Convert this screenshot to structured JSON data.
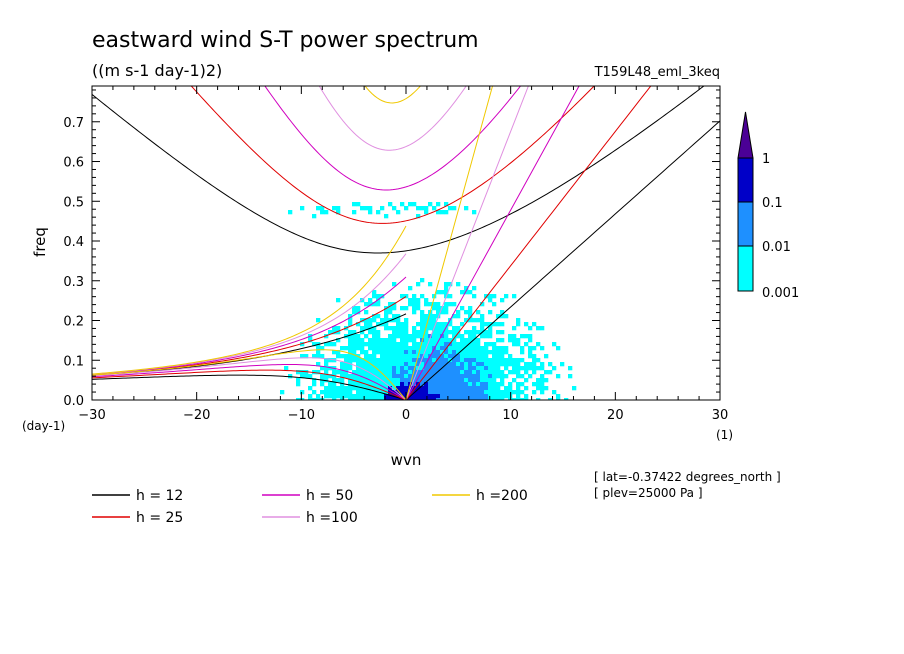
{
  "chart_data": {
    "type": "heatmap",
    "title": "eastward wind S-T power spectrum",
    "units": "((m s-1 day-1)2)",
    "run_label": "T159L48_eml_3keq",
    "xlabel": "wvn",
    "ylabel": "freq",
    "x_unit": "(1)",
    "y_unit": "(day-1)",
    "xlim": [
      -30,
      30
    ],
    "ylim": [
      0,
      0.79
    ],
    "x_ticks": [
      -30,
      -20,
      -10,
      0,
      10,
      20,
      30
    ],
    "y_ticks": [
      0.0,
      0.1,
      0.2,
      0.3,
      0.4,
      0.5,
      0.6,
      0.7
    ],
    "y_tick_labels": [
      "0.0",
      "0.1",
      "0.2",
      "0.3",
      "0.4",
      "0.5",
      "0.6",
      "0.7"
    ],
    "colorbar": {
      "levels": [
        "0.001",
        "0.01",
        "0.1",
        "1"
      ],
      "colors": [
        "#00ffff",
        "#1e90ff",
        "#0000c8",
        "#4b0096"
      ]
    },
    "dispersion_curves": [
      {
        "label": "h = 12",
        "h": 12,
        "color": "#000000"
      },
      {
        "label": "h = 25",
        "h": 25,
        "color": "#e00000"
      },
      {
        "label": "h = 50",
        "h": 50,
        "color": "#d000c0"
      },
      {
        "label": "h =100",
        "h": 100,
        "color": "#e090e0"
      },
      {
        "label": "h =200",
        "h": 200,
        "color": "#f0c800"
      }
    ],
    "annotations": [
      "[ lat=-0.37422 degrees_north ]",
      "[ plev=25000 Pa ]"
    ]
  }
}
